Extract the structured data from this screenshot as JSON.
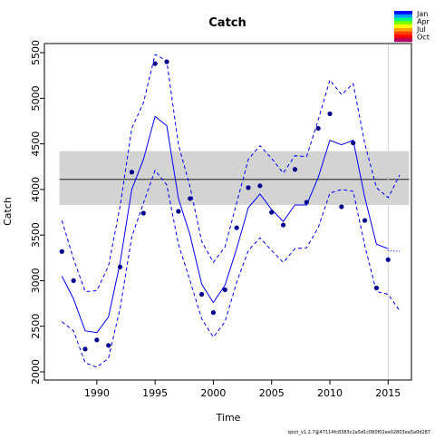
{
  "chart_data": {
    "type": "line",
    "title": "Catch",
    "xlabel": "Time",
    "ylabel": "Catch",
    "xlim": [
      1985.5,
      2017.0
    ],
    "ylim": [
      1910,
      5600
    ],
    "x_ticks": [
      1990,
      1995,
      2000,
      2005,
      2010,
      2015
    ],
    "y_ticks": [
      2000,
      2500,
      3000,
      3500,
      4000,
      4500,
      5000,
      5500
    ],
    "grid": false,
    "colors": {
      "series": "#0000ff",
      "points": "#00008b",
      "band": "#d3d3d3",
      "mean_line": "#000000",
      "vline": "#d3d3d3"
    },
    "band": {
      "lower": 3830,
      "upper": 4420
    },
    "mean_line": 4110,
    "vline_x": 2015,
    "observed": {
      "x": [
        1987,
        1988,
        1989,
        1990,
        1991,
        1992,
        1993,
        1994,
        1995,
        1996,
        1997,
        1998,
        1999,
        2000,
        2001,
        2002,
        2003,
        2004,
        2005,
        2006,
        2007,
        2008,
        2009,
        2010,
        2011,
        2012,
        2013,
        2014,
        2015
      ],
      "y": [
        3320,
        3000,
        2250,
        2350,
        2290,
        3150,
        4190,
        3740,
        5380,
        5400,
        3760,
        3900,
        2850,
        2650,
        2900,
        3580,
        4020,
        4040,
        3750,
        3610,
        4220,
        3860,
        4670,
        4830,
        3810,
        4510,
        3660,
        2920,
        3230
      ]
    },
    "estimate": {
      "x": [
        1987,
        1988,
        1989,
        1990,
        1991,
        1992,
        1993,
        1994,
        1995,
        1996,
        1997,
        1998,
        1999,
        2000,
        2001,
        2002,
        2003,
        2004,
        2005,
        2006,
        2007,
        2008,
        2009,
        2010,
        2011,
        2012,
        2013,
        2014,
        2015
      ],
      "y": [
        3050,
        2800,
        2450,
        2430,
        2600,
        3200,
        4000,
        4330,
        4800,
        4700,
        3900,
        3500,
        2960,
        2760,
        2950,
        3350,
        3800,
        3950,
        3780,
        3650,
        3830,
        3830,
        4130,
        4540,
        4490,
        4540,
        3910,
        3400,
        3350
      ]
    },
    "upper_ci": {
      "x": [
        1987,
        1988,
        1989,
        1990,
        1991,
        1992,
        1993,
        1994,
        1995,
        1996,
        1997,
        1998,
        1999,
        2000,
        2001,
        2002,
        2003,
        2004,
        2005,
        2006,
        2007,
        2008,
        2009,
        2010,
        2011,
        2012,
        2013,
        2014,
        2015,
        2016
      ],
      "y": [
        3660,
        3240,
        2880,
        2890,
        3160,
        3820,
        4670,
        4950,
        5480,
        5410,
        4490,
        4030,
        3430,
        3200,
        3370,
        3850,
        4330,
        4480,
        4340,
        4180,
        4370,
        4360,
        4760,
        5200,
        5040,
        5160,
        4500,
        4020,
        3910,
        4160
      ]
    },
    "lower_ci": {
      "x": [
        1987,
        1988,
        1989,
        1990,
        1991,
        1992,
        1993,
        1994,
        1995,
        1996,
        1997,
        1998,
        1999,
        2000,
        2001,
        2002,
        2003,
        2004,
        2005,
        2006,
        2007,
        2008,
        2009,
        2010,
        2011,
        2012,
        2013,
        2014,
        2015,
        2016
      ],
      "y": [
        2550,
        2450,
        2100,
        2050,
        2150,
        2700,
        3480,
        3850,
        4210,
        4050,
        3400,
        3000,
        2580,
        2380,
        2550,
        2980,
        3330,
        3470,
        3330,
        3200,
        3350,
        3360,
        3580,
        3960,
        4000,
        3980,
        3380,
        2880,
        2850,
        2670
      ]
    },
    "projection": {
      "x": [
        2015,
        2016
      ],
      "y": [
        3330,
        3320
      ]
    }
  },
  "legend": {
    "labels": [
      "Jan",
      "Apr",
      "Jul",
      "Oct"
    ],
    "colors": [
      "#0000ff",
      "#00a0ff",
      "#00ff80",
      "#80ff00",
      "#ffff00",
      "#ffa000",
      "#ff4000",
      "#ff0000",
      "#b00060"
    ]
  },
  "footer_text": "spict_v1.2.7@47114fc8383c2a5d1c080f02ee02803ea5a0d287"
}
